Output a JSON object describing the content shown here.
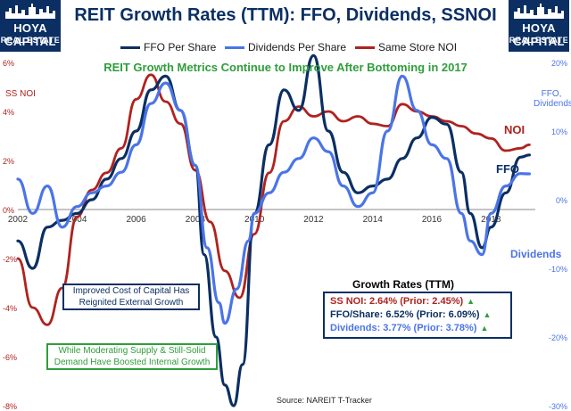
{
  "title": "REIT Growth Rates (TTM): FFO, Dividends, SSNOI",
  "subtitle": "REIT Growth Metrics Continue to Improve After Bottoming in 2017",
  "logo": {
    "line1": "HOYA CAPITAL",
    "line2": "REAL ESTATE"
  },
  "legend": [
    {
      "name": "FFO Per Share",
      "color": "#0b2f63"
    },
    {
      "name": "Dividends Per Share",
      "color": "#4a74e8"
    },
    {
      "name": "Same Store NOI",
      "color": "#b0221e"
    }
  ],
  "left_axis_label": "SS NOI",
  "right_axis_label_1": "FFO,",
  "right_axis_label_2": "Dividends",
  "series_labels": {
    "noi": "NOI",
    "ffo": "FFO",
    "div": "Dividends"
  },
  "box_cost": {
    "line1": "Improved Cost of Capital Has",
    "line2": "Reignited External Growth"
  },
  "box_supply": {
    "line1": "While Moderating Supply & Still-Solid",
    "line2": "Demand Have Boosted Internal Growth"
  },
  "growth_box": {
    "heading": "Growth Rates (TTM)",
    "noi": "SS NOI: 2.64% (Prior: 2.45%)",
    "ffo": "FFO/Share: 6.52% (Prior: 6.09%)",
    "div": "Dividends: 3.77% (Prior: 3.78%)"
  },
  "source": "Source: NAREIT T-Tracker",
  "colors": {
    "ffo": "#0b2f63",
    "div": "#4a74e8",
    "noi": "#b0221e",
    "green": "#2f9e3b",
    "navy": "#0b2f63"
  },
  "chart_data": {
    "type": "line",
    "xlabel": "",
    "ylabel": "",
    "x_ticks": [
      "2002",
      "2004",
      "2006",
      "2008",
      "2010",
      "2012",
      "2014",
      "2016",
      "2018"
    ],
    "xlim": [
      2002,
      2019.5
    ],
    "left_axis": {
      "ticks": [
        "6%",
        "4%",
        "2%",
        "0%",
        "-2%",
        "-4%",
        "-6%",
        "-8%"
      ],
      "ylim": [
        -8,
        6
      ]
    },
    "right_axis": {
      "ticks": [
        "20%",
        "10%",
        "0%",
        "-10%",
        "-20%",
        "-30%"
      ],
      "ylim": [
        -30,
        20
      ]
    },
    "series": [
      {
        "name": "Same Store NOI",
        "axis": "left",
        "x": [
          2002,
          2002.5,
          2003,
          2003.5,
          2004,
          2004.5,
          2005,
          2005.5,
          2006,
          2006.5,
          2007,
          2007.5,
          2008,
          2008.5,
          2009,
          2009.5,
          2010,
          2010.5,
          2011,
          2011.5,
          2012,
          2012.5,
          2013,
          2013.5,
          2014,
          2014.5,
          2015,
          2015.5,
          2016,
          2016.5,
          2017,
          2017.5,
          2018,
          2018.5,
          2019,
          2019.3
        ],
        "values": [
          -2.0,
          -4.0,
          -4.7,
          -3.2,
          -0.3,
          0.8,
          1.5,
          2.5,
          4.5,
          5.5,
          4.4,
          3.5,
          1.6,
          -0.5,
          -2.5,
          -3.6,
          -1.0,
          1.5,
          3.6,
          4.2,
          3.8,
          4.0,
          3.6,
          3.8,
          3.5,
          3.4,
          4.3,
          4.0,
          3.8,
          3.6,
          3.4,
          3.1,
          2.9,
          2.4,
          2.5,
          2.64
        ]
      },
      {
        "name": "FFO Per Share",
        "axis": "right",
        "x": [
          2002,
          2002.5,
          2003,
          2003.5,
          2004,
          2004.5,
          2005,
          2005.5,
          2006,
          2006.5,
          2007,
          2007.5,
          2008,
          2008.3,
          2008.7,
          2009,
          2009.3,
          2009.6,
          2010,
          2010.5,
          2011,
          2011.5,
          2012,
          2012.5,
          2013,
          2013.5,
          2014,
          2014.5,
          2015,
          2015.5,
          2016,
          2016.5,
          2017,
          2017.3,
          2017.7,
          2018,
          2018.5,
          2019,
          2019.3
        ],
        "values": [
          -6,
          -10,
          -4,
          -3,
          -2,
          0,
          3,
          6,
          10,
          16,
          18,
          13,
          5,
          -8,
          -20,
          -27,
          -30,
          -24,
          -2,
          8,
          16,
          13,
          21,
          10,
          4,
          1,
          2,
          3,
          6,
          9,
          12,
          11,
          4,
          -2,
          -7,
          -4,
          1,
          6.2,
          6.52
        ]
      },
      {
        "name": "Dividends Per Share",
        "axis": "right",
        "x": [
          2002,
          2002.5,
          2003,
          2003.5,
          2004,
          2004.5,
          2005,
          2005.5,
          2006,
          2006.5,
          2007,
          2007.5,
          2008,
          2008.4,
          2008.8,
          2009,
          2009.4,
          2009.8,
          2010,
          2010.5,
          2011,
          2011.5,
          2012,
          2012.5,
          2013,
          2013.5,
          2014,
          2014.5,
          2015,
          2015.5,
          2016,
          2016.5,
          2017,
          2017.3,
          2017.7,
          2018,
          2018.5,
          2019,
          2019.3
        ],
        "values": [
          3,
          -2,
          2,
          -4,
          -1,
          1,
          2,
          4,
          8,
          14,
          17,
          13,
          5,
          -7,
          -15,
          -18,
          -13,
          -6,
          -2,
          1,
          4,
          6,
          9,
          7,
          2,
          -1,
          1,
          10,
          18,
          13,
          8,
          6,
          -2,
          -6,
          -8,
          -2,
          2,
          3.8,
          3.77
        ]
      }
    ]
  }
}
